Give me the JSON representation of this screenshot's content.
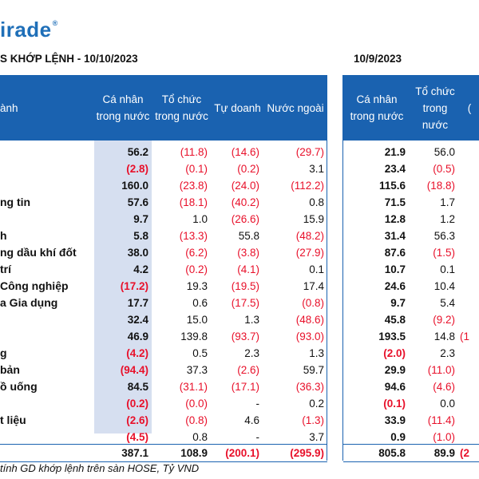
{
  "logo": {
    "text": "irade",
    "reg_mark": "®"
  },
  "left_title": "S KHỚP LỆNH - 10/10/2023",
  "right_title": "10/9/2023",
  "left_headers": [
    "ành",
    "Cá nhân trong nước",
    "Tổ chức trong nước",
    "Tự doanh",
    "Nước ngoài"
  ],
  "right_headers": [
    "Cá nhân trong nước",
    "Tổ chức trong nước",
    "("
  ],
  "rows": [
    {
      "name": "",
      "v": [
        "56.2",
        "(11.8)",
        "(14.6)",
        "(29.7)"
      ],
      "p": [
        "21.9",
        "56.0",
        ""
      ]
    },
    {
      "name": "",
      "v": [
        "(2.8)",
        "(0.1)",
        "(0.2)",
        "3.1"
      ],
      "p": [
        "23.4",
        "(0.5)",
        ""
      ]
    },
    {
      "name": "",
      "v": [
        "160.0",
        "(23.8)",
        "(24.0)",
        "(112.2)"
      ],
      "p": [
        "115.6",
        "(18.8)",
        ""
      ]
    },
    {
      "name": "ng tin",
      "v": [
        "57.6",
        "(18.1)",
        "(40.2)",
        "0.8"
      ],
      "p": [
        "71.5",
        "1.7",
        ""
      ]
    },
    {
      "name": "",
      "v": [
        "9.7",
        "1.0",
        "(26.6)",
        "15.9"
      ],
      "p": [
        "12.8",
        "1.2",
        ""
      ]
    },
    {
      "name": "h",
      "v": [
        "5.8",
        "(13.3)",
        "55.8",
        "(48.2)"
      ],
      "p": [
        "31.4",
        "56.3",
        ""
      ]
    },
    {
      "name": "ng dầu khí đốt",
      "v": [
        "38.0",
        "(6.2)",
        "(3.8)",
        "(27.9)"
      ],
      "p": [
        "87.6",
        "(1.5)",
        ""
      ]
    },
    {
      "name": "trí",
      "v": [
        "4.2",
        "(0.2)",
        "(4.1)",
        "0.1"
      ],
      "p": [
        "10.7",
        "0.1",
        ""
      ]
    },
    {
      "name": "Công nghiệp",
      "v": [
        "(17.2)",
        "19.3",
        "(19.5)",
        "17.4"
      ],
      "p": [
        "24.6",
        "10.4",
        ""
      ]
    },
    {
      "name": "a Gia dụng",
      "v": [
        "17.7",
        "0.6",
        "(17.5)",
        "(0.8)"
      ],
      "p": [
        "9.7",
        "5.4",
        ""
      ]
    },
    {
      "name": "",
      "v": [
        "32.4",
        "15.0",
        "1.3",
        "(48.6)"
      ],
      "p": [
        "45.8",
        "(9.2)",
        ""
      ]
    },
    {
      "name": "",
      "v": [
        "46.9",
        "139.8",
        "(93.7)",
        "(93.0)"
      ],
      "p": [
        "193.5",
        "14.8",
        "(1"
      ]
    },
    {
      "name": "g",
      "v": [
        "(4.2)",
        "0.5",
        "2.3",
        "1.3"
      ],
      "p": [
        "(2.0)",
        "2.3",
        ""
      ]
    },
    {
      "name": "bản",
      "v": [
        "(94.4)",
        "37.3",
        "(2.6)",
        "59.7"
      ],
      "p": [
        "29.9",
        "(11.0)",
        ""
      ]
    },
    {
      "name": "ồ uống",
      "v": [
        "84.5",
        "(31.1)",
        "(17.1)",
        "(36.3)"
      ],
      "p": [
        "94.6",
        "(4.6)",
        ""
      ]
    },
    {
      "name": "",
      "v": [
        "(0.2)",
        "(0.0)",
        "-",
        "0.2"
      ],
      "p": [
        "(0.1)",
        "0.0",
        ""
      ]
    },
    {
      "name": "t liệu",
      "v": [
        "(2.6)",
        "(0.8)",
        "4.6",
        "(1.3)"
      ],
      "p": [
        "33.9",
        "(11.4)",
        ""
      ]
    },
    {
      "name": "",
      "v": [
        "(4.5)",
        "0.8",
        "-",
        "3.7"
      ],
      "p": [
        "0.9",
        "(1.0)",
        ""
      ]
    }
  ],
  "total": {
    "v": [
      "387.1",
      "108.9",
      "(200.1)",
      "(295.9)"
    ],
    "p": [
      "805.8",
      "89.9",
      "(2"
    ]
  },
  "footnote": "tính GD khớp lệnh trên sàn HOSE, Tỷ VND",
  "colors": {
    "header_bg": "#1a62b0",
    "negative": "#e8102a",
    "highlight": "#d6dff0"
  }
}
